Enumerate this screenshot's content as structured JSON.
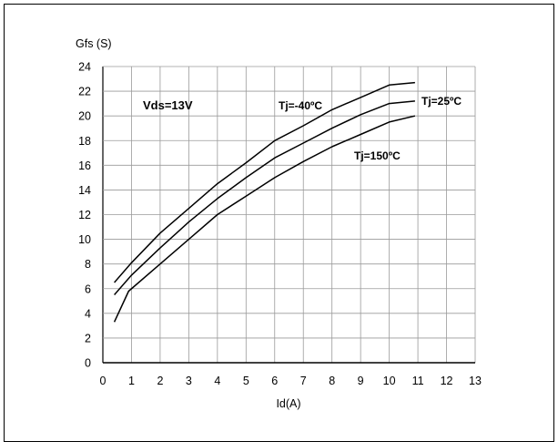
{
  "chart_data": {
    "type": "line",
    "title": "",
    "ylabel": "Gfs (S)",
    "xlabel": "Id(A)",
    "xlim": [
      0,
      13
    ],
    "ylim": [
      0,
      24
    ],
    "x_ticks": [
      0,
      1,
      2,
      3,
      4,
      5,
      6,
      7,
      8,
      9,
      10,
      11,
      12,
      13
    ],
    "y_ticks": [
      0,
      2,
      4,
      6,
      8,
      10,
      12,
      14,
      16,
      18,
      20,
      22,
      24
    ],
    "grid": true,
    "condition_label": "Vds=13V",
    "series": [
      {
        "name": "Tj=-40ºC",
        "points": [
          [
            0.4,
            6.5
          ],
          [
            1,
            8.1
          ],
          [
            2,
            10.5
          ],
          [
            3,
            12.5
          ],
          [
            4,
            14.5
          ],
          [
            5,
            16.2
          ],
          [
            6,
            18.0
          ],
          [
            7,
            19.2
          ],
          [
            8,
            20.5
          ],
          [
            9,
            21.5
          ],
          [
            10,
            22.5
          ],
          [
            10.9,
            22.7
          ]
        ]
      },
      {
        "name": "Tj=25ºC",
        "points": [
          [
            0.4,
            5.5
          ],
          [
            1,
            7.1
          ],
          [
            2,
            9.3
          ],
          [
            3,
            11.4
          ],
          [
            4,
            13.3
          ],
          [
            5,
            15.0
          ],
          [
            6,
            16.6
          ],
          [
            7,
            17.8
          ],
          [
            8,
            19.0
          ],
          [
            9,
            20.1
          ],
          [
            10,
            21.0
          ],
          [
            10.9,
            21.2
          ]
        ]
      },
      {
        "name": "Tj=150ºC",
        "points": [
          [
            0.4,
            3.3
          ],
          [
            0.9,
            5.8
          ],
          [
            2,
            8.0
          ],
          [
            3,
            10.0
          ],
          [
            4,
            12.0
          ],
          [
            5,
            13.5
          ],
          [
            6,
            15.0
          ],
          [
            7,
            16.3
          ],
          [
            8,
            17.5
          ],
          [
            9,
            18.5
          ],
          [
            10,
            19.5
          ],
          [
            10.9,
            20.0
          ]
        ]
      }
    ]
  }
}
